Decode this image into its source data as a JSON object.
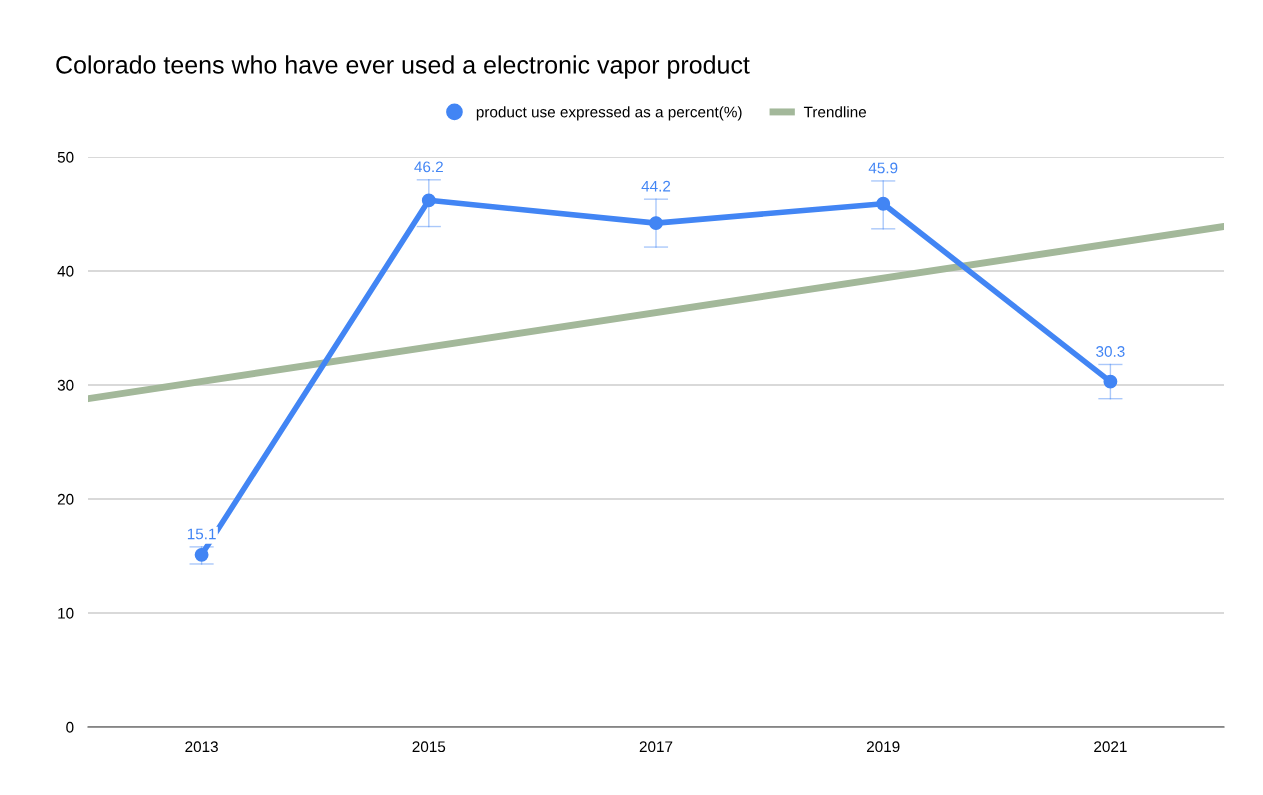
{
  "chart_data": {
    "type": "line",
    "title": "Colorado teens who have ever used a electronic vapor product",
    "x": [
      2013,
      2015,
      2017,
      2019,
      2021
    ],
    "series": [
      {
        "name": "product use expressed as a percent(%)",
        "color": "#4285f4",
        "values": [
          15.1,
          46.2,
          44.2,
          45.9,
          30.3
        ],
        "errors": [
          [
            14.3,
            15.8
          ],
          [
            43.9,
            48.0
          ],
          [
            42.1,
            46.3
          ],
          [
            43.7,
            47.9
          ],
          [
            28.8,
            31.8
          ]
        ],
        "marker": "circle",
        "data_labels": true
      },
      {
        "name": "Trendline",
        "color": "#a3b89a",
        "x": [
          2012,
          2022
        ],
        "values": [
          28.8,
          43.9
        ],
        "marker": "none"
      }
    ],
    "xlim": [
      2012,
      2022
    ],
    "xticks": [
      2013,
      2015,
      2017,
      2019,
      2021
    ],
    "ylim": [
      0,
      50
    ],
    "yticks": [
      0,
      10,
      20,
      30,
      40,
      50
    ],
    "grid": "y",
    "legend": "top",
    "line_style": "solid"
  }
}
